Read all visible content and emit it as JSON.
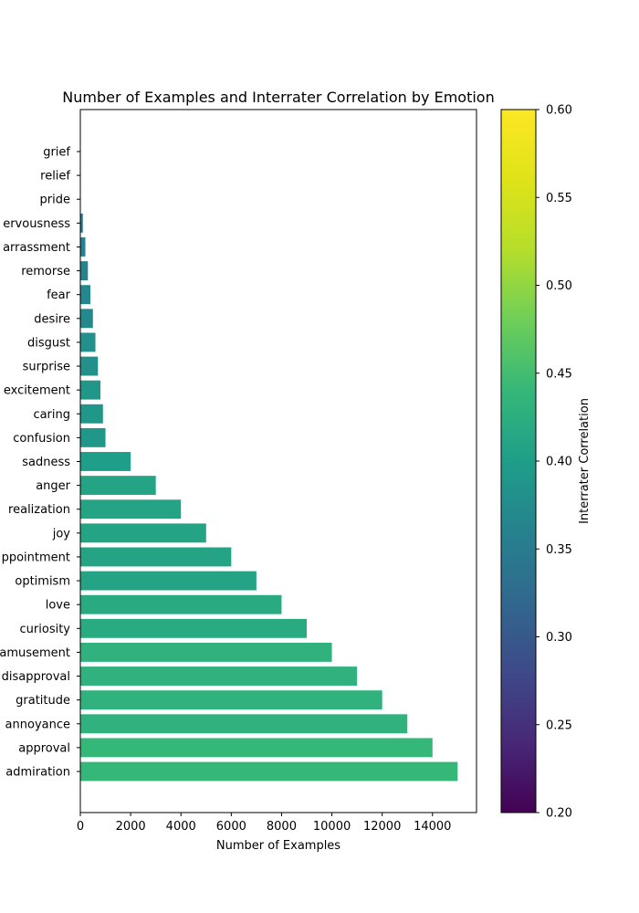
{
  "chart_data": {
    "type": "bar",
    "orientation": "horizontal",
    "title": "Number of Examples and Interrater Correlation by Emotion",
    "xlabel": "Number of Examples",
    "ylabel": "",
    "xlim": [
      0,
      15750
    ],
    "xticks": [
      0,
      2000,
      4000,
      6000,
      8000,
      10000,
      12000,
      14000
    ],
    "xtick_labels": [
      "0",
      "2000",
      "4000",
      "6000",
      "8000",
      "10000",
      "12000",
      "14000"
    ],
    "categories": [
      "admiration",
      "approval",
      "annoyance",
      "gratitude",
      "disapproval",
      "amusement",
      "curiosity",
      "love",
      "optimism",
      "disappointment",
      "joy",
      "realization",
      "anger",
      "sadness",
      "confusion",
      "caring",
      "excitement",
      "surprise",
      "disgust",
      "desire",
      "fear",
      "remorse",
      "embarrassment",
      "nervousness",
      "pride",
      "relief",
      "grief"
    ],
    "ytick_labels": [
      "admiration",
      "approval",
      "annoyance",
      "gratitude",
      "disapproval",
      "amusement",
      "curiosity",
      "love",
      "optimism",
      "ppointment",
      "joy",
      "realization",
      "anger",
      "sadness",
      "confusion",
      "caring",
      "excitement",
      "surprise",
      "disgust",
      "desire",
      "fear",
      "remorse",
      "arrassment",
      "ervousness",
      "pride",
      "relief",
      "grief"
    ],
    "values": [
      15000,
      14000,
      13000,
      12000,
      11000,
      10000,
      9000,
      8000,
      7000,
      6000,
      5000,
      4000,
      3000,
      2000,
      1000,
      900,
      800,
      700,
      600,
      500,
      400,
      300,
      200,
      100,
      0,
      0,
      0
    ],
    "correlation": [
      0.44,
      0.44,
      0.43,
      0.43,
      0.43,
      0.43,
      0.42,
      0.42,
      0.41,
      0.41,
      0.41,
      0.41,
      0.41,
      0.4,
      0.39,
      0.39,
      0.39,
      0.38,
      0.38,
      0.37,
      0.37,
      0.36,
      0.36,
      0.35,
      0.35,
      0.34,
      0.34
    ],
    "colorbar": {
      "label": "Interrater Correlation",
      "range": [
        0.2,
        0.6
      ],
      "ticks": [
        0.2,
        0.25,
        0.3,
        0.35,
        0.4,
        0.45,
        0.5,
        0.55,
        0.6
      ],
      "tick_labels": [
        "0.20",
        "0.25",
        "0.30",
        "0.35",
        "0.40",
        "0.45",
        "0.50",
        "0.55",
        "0.60"
      ],
      "colormap": "viridis"
    },
    "grid": false,
    "legend": "none"
  }
}
